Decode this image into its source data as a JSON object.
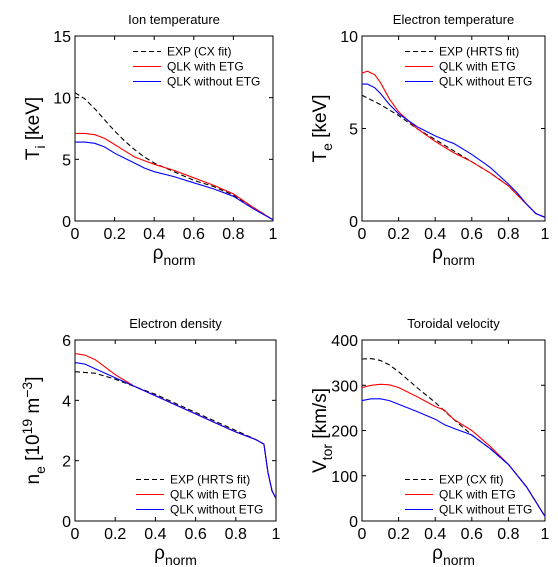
{
  "chart_data": [
    {
      "type": "line",
      "title": "Ion temperature",
      "xlabel": {
        "main": "ρ",
        "sub": "norm"
      },
      "ylabel": {
        "main": "T",
        "sub": "i",
        "rest": " [keV]"
      },
      "xlim": [
        0,
        1
      ],
      "ylim": [
        0,
        15
      ],
      "xticks": [
        "0",
        "0.2",
        "0.4",
        "0.6",
        "0.8",
        "1"
      ],
      "yticks": [
        0,
        5,
        10,
        15
      ],
      "legend_position": "top-right",
      "series": [
        {
          "name": "EXP (CX fit)",
          "color": "#000000",
          "dash": true,
          "x": [
            0,
            0.05,
            0.1,
            0.15,
            0.2,
            0.25,
            0.3,
            0.35,
            0.4,
            0.5,
            0.6,
            0.7,
            0.8,
            0.9,
            1.0
          ],
          "y": [
            10.4,
            9.9,
            9.1,
            8.2,
            7.3,
            6.5,
            5.8,
            5.2,
            4.7,
            4.0,
            3.3,
            2.8,
            2.1,
            1.1,
            0.1
          ]
        },
        {
          "name": "QLK with ETG",
          "color": "#ff0000",
          "dash": false,
          "x": [
            0,
            0.05,
            0.1,
            0.15,
            0.2,
            0.25,
            0.3,
            0.35,
            0.4,
            0.5,
            0.6,
            0.7,
            0.8,
            0.9,
            1.0
          ],
          "y": [
            7.1,
            7.1,
            7.0,
            6.7,
            6.2,
            5.7,
            5.2,
            4.9,
            4.6,
            4.1,
            3.5,
            2.9,
            2.2,
            1.1,
            0.1
          ]
        },
        {
          "name": "QLK without ETG",
          "color": "#0000ff",
          "dash": false,
          "x": [
            0,
            0.05,
            0.1,
            0.15,
            0.2,
            0.25,
            0.3,
            0.35,
            0.4,
            0.5,
            0.6,
            0.7,
            0.8,
            0.9,
            1.0
          ],
          "y": [
            6.4,
            6.4,
            6.3,
            6.0,
            5.5,
            5.1,
            4.7,
            4.3,
            4.0,
            3.6,
            3.1,
            2.6,
            2.0,
            1.0,
            0.1
          ]
        }
      ]
    },
    {
      "type": "line",
      "title": "Electron temperature",
      "xlabel": {
        "main": "ρ",
        "sub": "norm"
      },
      "ylabel": {
        "main": "T",
        "sub": "e",
        "rest": " [keV]"
      },
      "xlim": [
        0,
        1
      ],
      "ylim": [
        0,
        10
      ],
      "xticks": [
        "0",
        "0.2",
        "0.4",
        "0.6",
        "0.8",
        "1"
      ],
      "yticks": [
        0,
        5,
        10
      ],
      "legend_position": "top-right",
      "series": [
        {
          "name": "EXP (HRTS fit)",
          "color": "#000000",
          "dash": true,
          "x": [
            0,
            0.1,
            0.2,
            0.3,
            0.4,
            0.5,
            0.6,
            0.7,
            0.8,
            0.85,
            0.9,
            0.95,
            1.0
          ],
          "y": [
            6.8,
            6.3,
            5.7,
            5.0,
            4.4,
            3.8,
            3.2,
            2.6,
            1.9,
            1.4,
            0.9,
            0.4,
            0.2
          ]
        },
        {
          "name": "QLK with ETG",
          "color": "#ff0000",
          "dash": false,
          "x": [
            0,
            0.03,
            0.07,
            0.1,
            0.15,
            0.2,
            0.3,
            0.4,
            0.5,
            0.6,
            0.7,
            0.8,
            0.85,
            0.9,
            0.95,
            1.0
          ],
          "y": [
            8.0,
            8.1,
            7.9,
            7.5,
            6.6,
            5.9,
            5.0,
            4.3,
            3.7,
            3.2,
            2.6,
            1.9,
            1.4,
            0.9,
            0.4,
            0.2
          ]
        },
        {
          "name": "QLK without ETG",
          "color": "#0000ff",
          "dash": false,
          "x": [
            0,
            0.03,
            0.07,
            0.1,
            0.15,
            0.2,
            0.3,
            0.4,
            0.47,
            0.5,
            0.6,
            0.7,
            0.8,
            0.85,
            0.9,
            0.95,
            1.0
          ],
          "y": [
            7.4,
            7.4,
            7.2,
            6.9,
            6.3,
            5.8,
            5.1,
            4.6,
            4.3,
            4.2,
            3.6,
            2.9,
            2.0,
            1.5,
            0.9,
            0.4,
            0.2
          ]
        }
      ]
    },
    {
      "type": "line",
      "title": "Electron density",
      "xlabel": {
        "main": "ρ",
        "sub": "norm"
      },
      "ylabel": {
        "main": "n",
        "sub": "e",
        "rest": " [10",
        "sup": "19",
        "rest2": " m",
        "sup2": "−3",
        "close": "]"
      },
      "xlim": [
        0,
        1
      ],
      "ylim": [
        0,
        6
      ],
      "xticks": [
        "0",
        "0.2",
        "0.4",
        "0.6",
        "0.8",
        "1"
      ],
      "yticks": [
        0,
        2,
        4,
        6
      ],
      "legend_position": "bottom-right",
      "series": [
        {
          "name": "EXP (HRTS fit)",
          "color": "#000000",
          "dash": true,
          "x": [
            0,
            0.1,
            0.2,
            0.3,
            0.4,
            0.5,
            0.6,
            0.7,
            0.8,
            0.9,
            0.94,
            0.96,
            0.98,
            1.0
          ],
          "y": [
            4.95,
            4.9,
            4.7,
            4.45,
            4.2,
            3.9,
            3.6,
            3.3,
            3.0,
            2.7,
            2.55,
            1.6,
            1.0,
            0.75
          ]
        },
        {
          "name": "QLK with ETG",
          "color": "#ff0000",
          "dash": false,
          "x": [
            0,
            0.05,
            0.1,
            0.15,
            0.2,
            0.3,
            0.4,
            0.5,
            0.6,
            0.7,
            0.8,
            0.9,
            0.94,
            0.96,
            0.98,
            1.0
          ],
          "y": [
            5.55,
            5.5,
            5.35,
            5.1,
            4.85,
            4.45,
            4.15,
            3.85,
            3.55,
            3.25,
            2.95,
            2.7,
            2.55,
            1.6,
            1.0,
            0.75
          ]
        },
        {
          "name": "QLK without ETG",
          "color": "#0000ff",
          "dash": false,
          "x": [
            0,
            0.05,
            0.1,
            0.15,
            0.2,
            0.3,
            0.4,
            0.5,
            0.6,
            0.7,
            0.8,
            0.9,
            0.94,
            0.96,
            0.98,
            1.0
          ],
          "y": [
            5.25,
            5.2,
            5.05,
            4.9,
            4.75,
            4.45,
            4.15,
            3.85,
            3.55,
            3.25,
            2.95,
            2.7,
            2.55,
            1.6,
            1.0,
            0.75
          ]
        }
      ]
    },
    {
      "type": "line",
      "title": "Toroidal velocity",
      "xlabel": {
        "main": "ρ",
        "sub": "norm"
      },
      "ylabel": {
        "main": "V",
        "sub": "tor",
        "rest": " [km/s]"
      },
      "xlim": [
        0,
        1
      ],
      "ylim": [
        0,
        400
      ],
      "xticks": [
        "0",
        "0.2",
        "0.4",
        "0.6",
        "0.8",
        "1"
      ],
      "yticks": [
        0,
        100,
        200,
        300,
        400
      ],
      "legend_position": "bottom-right",
      "series": [
        {
          "name": "EXP (CX fit)",
          "color": "#000000",
          "dash": true,
          "x": [
            0,
            0.05,
            0.1,
            0.15,
            0.2,
            0.3,
            0.4,
            0.5,
            0.6,
            0.7,
            0.8,
            0.9,
            1.0
          ],
          "y": [
            358,
            359,
            355,
            345,
            330,
            295,
            262,
            225,
            190,
            160,
            125,
            75,
            10
          ]
        },
        {
          "name": "QLK with ETG",
          "color": "#ff0000",
          "dash": false,
          "x": [
            0,
            0.05,
            0.1,
            0.15,
            0.2,
            0.3,
            0.4,
            0.45,
            0.5,
            0.6,
            0.7,
            0.8,
            0.9,
            1.0
          ],
          "y": [
            295,
            300,
            302,
            301,
            295,
            275,
            253,
            245,
            225,
            200,
            165,
            125,
            75,
            10
          ]
        },
        {
          "name": "QLK without ETG",
          "color": "#0000ff",
          "dash": false,
          "x": [
            0,
            0.05,
            0.1,
            0.15,
            0.2,
            0.3,
            0.4,
            0.45,
            0.5,
            0.6,
            0.7,
            0.8,
            0.9,
            1.0
          ],
          "y": [
            266,
            270,
            270,
            266,
            258,
            242,
            225,
            213,
            205,
            190,
            160,
            125,
            75,
            10
          ]
        }
      ]
    }
  ]
}
